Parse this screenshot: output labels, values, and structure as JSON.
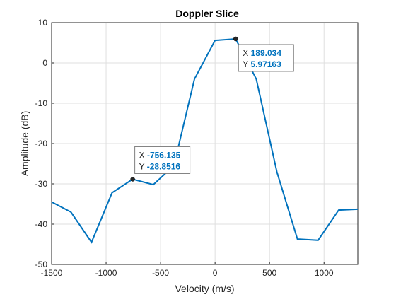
{
  "chart_data": {
    "type": "line",
    "title": "Doppler Slice",
    "xlabel": "Velocity (m/s)",
    "ylabel": "Amplitude (dB)",
    "xlim": [
      -1500,
      1310
    ],
    "ylim": [
      -50,
      10
    ],
    "xticks": [
      -1500,
      -1000,
      -500,
      0,
      500,
      1000
    ],
    "yticks": [
      -50,
      -40,
      -30,
      -20,
      -10,
      0,
      10
    ],
    "grid": true,
    "line_color": "#0072BD",
    "series": [
      {
        "x": [
          -1500,
          -1323,
          -1134,
          -945,
          -756,
          -567,
          -378,
          -189,
          0,
          189,
          378,
          567,
          756,
          945,
          1134,
          1310
        ],
        "y": [
          -34.5,
          -37,
          -44.5,
          -32.2,
          -28.85,
          -30.2,
          -25.5,
          -4,
          5.6,
          5.97,
          -4,
          -27,
          -43.7,
          -44,
          -36.5,
          -36.3
        ]
      }
    ],
    "datatips": [
      {
        "x_label": "X",
        "x_value": "189.034",
        "y_label": "Y",
        "y_value": "5.97163",
        "x": 189.034,
        "y": 5.97163
      },
      {
        "x_label": "X",
        "x_value": "-756.135",
        "y_label": "Y",
        "y_value": "-28.8516",
        "x": -756.135,
        "y": -28.8516
      }
    ],
    "datatip_value_color": "#0072BD"
  }
}
